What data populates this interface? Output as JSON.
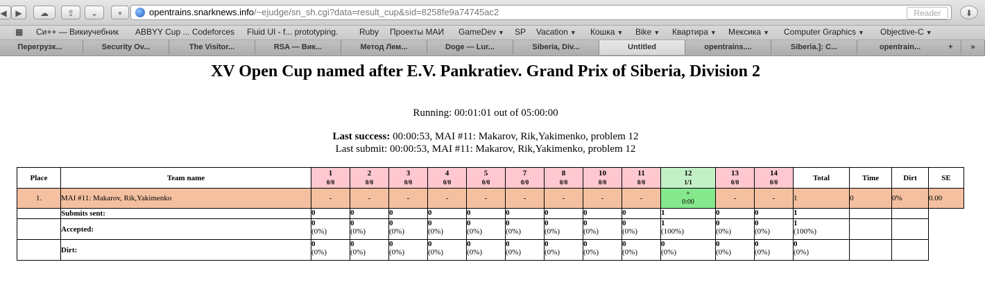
{
  "browser": {
    "url_host": "opentrains.snarknews.info",
    "url_path": "/~ejudge/sn_sh.cgi?data=result_cup&sid=8258fe9a74745ac2",
    "reader_label": "Reader",
    "bookmarks": [
      {
        "label": "Си++ — Викиучебник",
        "menu": false
      },
      {
        "label": "ABBYY Cup ... Codeforces",
        "menu": false
      },
      {
        "label": "Fluid UI - f... prototyping.",
        "menu": false
      },
      {
        "label": "Ruby",
        "menu": false
      },
      {
        "label": "Проекты МАИ",
        "menu": false
      },
      {
        "label": "GameDev",
        "menu": true
      },
      {
        "label": "SP",
        "menu": false
      },
      {
        "label": "Vacation",
        "menu": true
      },
      {
        "label": "Кошка",
        "menu": true
      },
      {
        "label": "Bike",
        "menu": true
      },
      {
        "label": "Квартира",
        "menu": true
      },
      {
        "label": "Мексика",
        "menu": true
      },
      {
        "label": "Computer Graphics",
        "menu": true
      },
      {
        "label": "Objective-C",
        "menu": true
      }
    ],
    "tabs": [
      "Перегрузк...",
      "Security Ov...",
      "The Visitor...",
      "RSA — Вик...",
      "Метод Лем...",
      "Doge — Lur...",
      "Siberia, Div...",
      "Untitled",
      "opentrains....",
      "Siberia.]: C...",
      "opentrain..."
    ],
    "active_tab_index": 7
  },
  "page": {
    "title": "XV Open Cup named after E.V. Pankratiev. Grand Prix of Siberia, Division 2",
    "running": "Running: 00:01:01 out of 05:00:00",
    "last_success_label": "Last success:",
    "last_success_value": " 00:00:53, MAI #11: Makarov, Rik,Yakimenko, problem 12",
    "last_submit": "Last submit: 00:00:53, MAI #11: Makarov, Rik,Yakimenko, problem 12"
  },
  "table": {
    "headers": {
      "place": "Place",
      "team": "Team name",
      "total": "Total",
      "time": "Time",
      "dirt": "Dirt",
      "se": "SE"
    },
    "problems": [
      {
        "num": "1",
        "ratio": "0/0"
      },
      {
        "num": "2",
        "ratio": "0/0"
      },
      {
        "num": "3",
        "ratio": "0/0"
      },
      {
        "num": "4",
        "ratio": "0/0"
      },
      {
        "num": "5",
        "ratio": "0/0"
      },
      {
        "num": "7",
        "ratio": "0/0"
      },
      {
        "num": "8",
        "ratio": "0/0"
      },
      {
        "num": "10",
        "ratio": "0/0"
      },
      {
        "num": "11",
        "ratio": "0/0"
      },
      {
        "num": "12",
        "ratio": "1/1"
      },
      {
        "num": "13",
        "ratio": "0/0"
      },
      {
        "num": "14",
        "ratio": "0/0"
      }
    ],
    "team": {
      "place": "1.",
      "name": "MAI #11: Makarov, Rik,Yakimenko",
      "cells": [
        "-",
        "-",
        "-",
        "-",
        "-",
        "-",
        "-",
        "-",
        "-",
        "+",
        "-",
        "-"
      ],
      "ok_time": "0:00",
      "total": "1",
      "time": "0",
      "dirt": "0%",
      "se": "0.00"
    },
    "stats": {
      "submits_label": "Submits sent:",
      "accepted_label": "Accepted:",
      "dirt_label": "Dirt:",
      "submits": [
        "0",
        "0",
        "0",
        "0",
        "0",
        "0",
        "0",
        "0",
        "0",
        "1",
        "0",
        "0",
        "1"
      ],
      "accepted": [
        "0",
        "0",
        "0",
        "0",
        "0",
        "0",
        "0",
        "0",
        "0",
        "1",
        "0",
        "0",
        "1"
      ],
      "accepted_pct": [
        "(0%)",
        "(0%)",
        "(0%)",
        "(0%)",
        "(0%)",
        "(0%)",
        "(0%)",
        "(0%)",
        "(0%)",
        "(100%)",
        "(0%)",
        "(0%)",
        "(100%)"
      ],
      "dirt": [
        "0",
        "0",
        "0",
        "0",
        "0",
        "0",
        "0",
        "0",
        "0",
        "0",
        "0",
        "0",
        "0"
      ],
      "dirt_pct": [
        "(0%)",
        "(0%)",
        "(0%)",
        "(0%)",
        "(0%)",
        "(0%)",
        "(0%)",
        "(0%)",
        "(0%)",
        "(0%)",
        "(0%)",
        "(0%)",
        "(0%)"
      ]
    }
  }
}
